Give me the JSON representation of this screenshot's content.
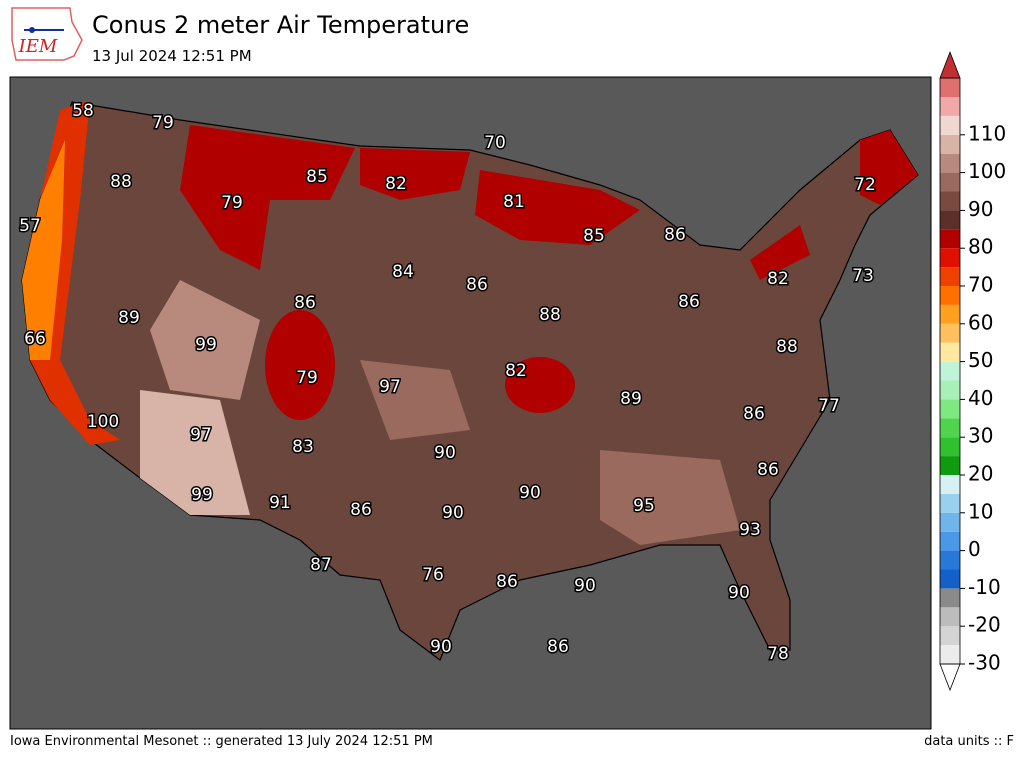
{
  "header": {
    "logo": "IEM",
    "title": "Conus 2 meter Air Temperature",
    "subtitle": "13 Jul 2024 12:51 PM"
  },
  "map": {
    "labels": [
      58,
      79,
      70,
      88,
      85,
      82,
      72,
      79,
      81,
      57,
      85,
      86,
      84,
      86,
      82,
      73,
      86,
      86,
      89,
      88,
      66,
      99,
      88,
      79,
      97,
      82,
      89,
      77,
      100,
      86,
      97,
      83,
      90,
      86,
      99,
      91,
      86,
      90,
      90,
      95,
      93,
      87,
      76,
      86,
      90,
      90,
      90,
      86,
      78
    ]
  },
  "colorbar": {
    "ticks": [
      -30,
      -20,
      -10,
      0,
      10,
      20,
      30,
      40,
      50,
      60,
      70,
      80,
      90,
      100,
      110
    ],
    "colors": [
      "#ececec",
      "#d4d4d4",
      "#bcbcbc",
      "#8a8a8a",
      "#1460c8",
      "#2878d8",
      "#4a98e8",
      "#70b4ea",
      "#98d0ee",
      "#d8f0f4",
      "#109a10",
      "#30c030",
      "#50d450",
      "#80e880",
      "#a8f0b8",
      "#c0f4d8",
      "#ffe8a0",
      "#ffc060",
      "#ffa020",
      "#ff7000",
      "#f04000",
      "#e01000",
      "#b00000",
      "#5c3028",
      "#7a4a40",
      "#9a6a5e",
      "#b88a7e",
      "#d8b4a8",
      "#f0d8d0",
      "#f0a8a8",
      "#e07070"
    ]
  },
  "footer": {
    "left": "Iowa Environmental Mesonet :: generated 13 July 2024 12:51 PM",
    "right": "data units :: F"
  }
}
